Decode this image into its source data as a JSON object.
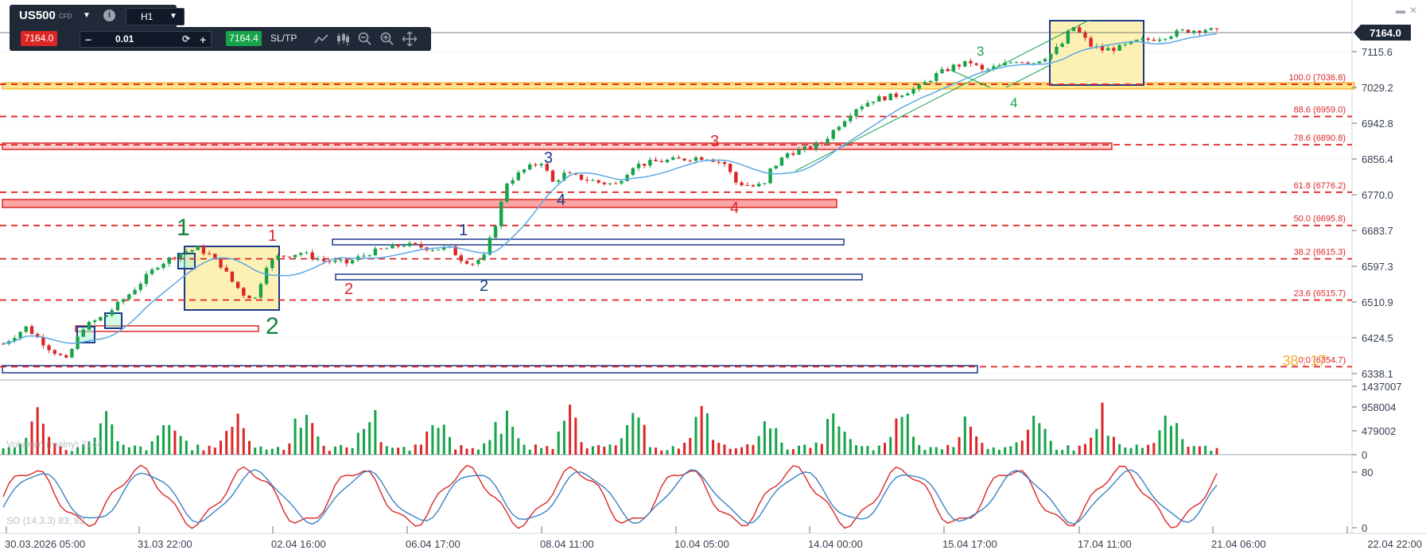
{
  "instrument": {
    "symbol": "US500",
    "type": "CFD",
    "timeframe": "H1"
  },
  "trade_panel": {
    "bid": "7164.0",
    "ask": "7164.4",
    "quantity": "0.01",
    "minus": "−",
    "plus": "+",
    "sltp_label": "SL/TP"
  },
  "toolbar_icons": [
    "line-chart-icon",
    "candles-icon",
    "zoom-out-icon",
    "zoom-in-icon",
    "crosshair-icon"
  ],
  "window_controls": {
    "minimize": "▬",
    "close": "✕"
  },
  "price_axis": {
    "labels": [
      "7115.6",
      "7029.2",
      "6942.8",
      "6856.4",
      "6770.0",
      "6683.7",
      "6597.3",
      "6510.9",
      "6424.5",
      "6338.1"
    ],
    "current_price": "7164.0"
  },
  "fib_levels": [
    {
      "label": "100.0 (7036.8)",
      "price": 7036.8
    },
    {
      "label": "88.6 (6959.0)",
      "price": 6959.0
    },
    {
      "label": "78.6 (6890.8)",
      "price": 6890.8
    },
    {
      "label": "61.8 (6776.2)",
      "price": 6776.2
    },
    {
      "label": "50.0 (6695.8)",
      "price": 6695.8
    },
    {
      "label": "38.2 (6615.3)",
      "price": 6615.3
    },
    {
      "label": "23.6 (6515.7)",
      "price": 6515.7
    },
    {
      "label": "0.0 (6354.7)",
      "price": 6354.7
    }
  ],
  "wave_labels": {
    "green_big": [
      "1",
      "2"
    ],
    "red": [
      "1",
      "2",
      "3",
      "4"
    ],
    "navy": [
      "1",
      "2",
      "3",
      "4"
    ],
    "teal": [
      "3",
      "4"
    ]
  },
  "watermark_countdown": "38 : 17",
  "volume_axis": [
    "1437007",
    "958004",
    "479002",
    "0"
  ],
  "volume_legend": "Volumen (realny) 2144",
  "oscillator_axis": [
    "80",
    "0"
  ],
  "oscillator_legend": "SO (14,3,3) 83, 83",
  "time_axis": [
    "30.03.2026 05:00",
    "31.03 22:00",
    "02.04 16:00",
    "06.04 17:00",
    "08.04 11:00",
    "10.04 05:00",
    "14.04 00:00",
    "15.04 17:00",
    "17.04 11:00",
    "21.04 06:00",
    "22.04 22:00"
  ],
  "colors": {
    "up": "#16a34a",
    "down": "#dc2626",
    "ma": "#5aa9e6",
    "fib": "#dc2626",
    "box_border": "#1e3a8a",
    "box_fill": "#fdf0b5",
    "highlight": "#fde68a"
  },
  "chart_data": {
    "type": "candlestick",
    "price_range": [
      6338.1,
      7164.0
    ],
    "close_path": [
      [
        0,
        6410
      ],
      [
        4,
        6450
      ],
      [
        8,
        6400
      ],
      [
        11,
        6370
      ],
      [
        14,
        6450
      ],
      [
        18,
        6480
      ],
      [
        22,
        6530
      ],
      [
        27,
        6600
      ],
      [
        31,
        6630
      ],
      [
        34,
        6640
      ],
      [
        36,
        6625
      ],
      [
        38,
        6600
      ],
      [
        40,
        6560
      ],
      [
        42,
        6530
      ],
      [
        44,
        6520
      ],
      [
        46,
        6600
      ],
      [
        48,
        6620
      ],
      [
        52,
        6630
      ],
      [
        56,
        6610
      ],
      [
        60,
        6605
      ],
      [
        64,
        6630
      ],
      [
        70,
        6650
      ],
      [
        75,
        6640
      ],
      [
        78,
        6640
      ],
      [
        80,
        6615
      ],
      [
        82,
        6605
      ],
      [
        84,
        6620
      ],
      [
        86,
        6700
      ],
      [
        88,
        6800
      ],
      [
        91,
        6830
      ],
      [
        94,
        6850
      ],
      [
        96,
        6800
      ],
      [
        98,
        6820
      ],
      [
        101,
        6810
      ],
      [
        104,
        6800
      ],
      [
        107,
        6795
      ],
      [
        110,
        6840
      ],
      [
        114,
        6850
      ],
      [
        118,
        6855
      ],
      [
        121,
        6860
      ],
      [
        123,
        6860
      ],
      [
        126,
        6845
      ],
      [
        128,
        6800
      ],
      [
        131,
        6790
      ],
      [
        133,
        6795
      ],
      [
        134,
        6830
      ],
      [
        137,
        6870
      ],
      [
        140,
        6880
      ],
      [
        143,
        6895
      ],
      [
        146,
        6940
      ],
      [
        149,
        6980
      ],
      [
        152,
        7000
      ],
      [
        156,
        7010
      ],
      [
        160,
        7030
      ],
      [
        163,
        7060
      ],
      [
        166,
        7080
      ],
      [
        169,
        7090
      ],
      [
        171,
        7070
      ],
      [
        174,
        7080
      ],
      [
        177,
        7095
      ],
      [
        180,
        7090
      ],
      [
        183,
        7110
      ],
      [
        185,
        7135
      ],
      [
        186,
        7160
      ],
      [
        187,
        7175
      ],
      [
        188,
        7160
      ],
      [
        190,
        7130
      ],
      [
        192,
        7120
      ],
      [
        195,
        7125
      ],
      [
        198,
        7140
      ],
      [
        202,
        7150
      ],
      [
        206,
        7165
      ],
      [
        210,
        7170
      ],
      [
        212,
        7164
      ]
    ]
  }
}
